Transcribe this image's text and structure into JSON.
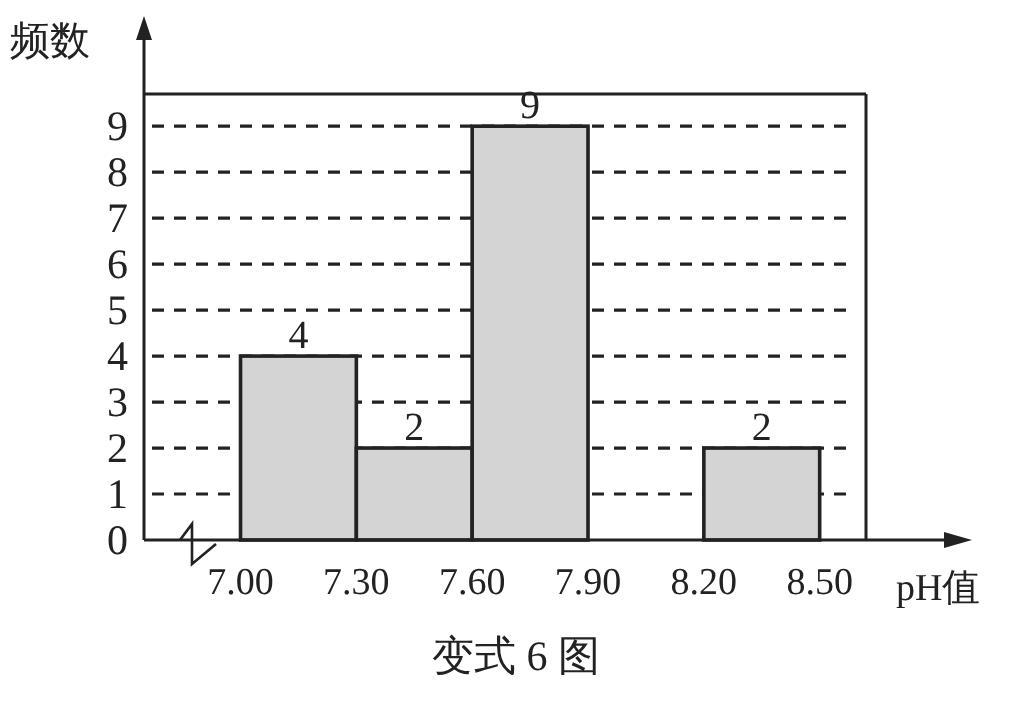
{
  "chart_data": {
    "type": "histogram",
    "title": "变式 6 图",
    "xlabel": "pH值",
    "ylabel": "频数",
    "bins": [
      7.0,
      7.3,
      7.6,
      7.9,
      8.2,
      8.5
    ],
    "values": [
      4,
      2,
      9,
      0,
      2
    ],
    "value_labels": [
      "4",
      "2",
      "9",
      null,
      "2"
    ],
    "color": "#d4d4d4",
    "xlim": [
      6.75,
      8.62
    ],
    "ylim": [
      0,
      9.7
    ],
    "xticks": [
      {
        "value": 7.0,
        "label": "7.00"
      },
      {
        "value": 7.3,
        "label": "7.30"
      },
      {
        "value": 7.6,
        "label": "7.60"
      },
      {
        "value": 7.9,
        "label": "7.90"
      },
      {
        "value": 8.2,
        "label": "8.20"
      },
      {
        "value": 8.5,
        "label": "8.50"
      }
    ],
    "yticks": [
      0,
      1,
      2,
      3,
      4,
      5,
      6,
      7,
      8,
      9
    ],
    "grid": "y",
    "line_style": "dashed"
  }
}
